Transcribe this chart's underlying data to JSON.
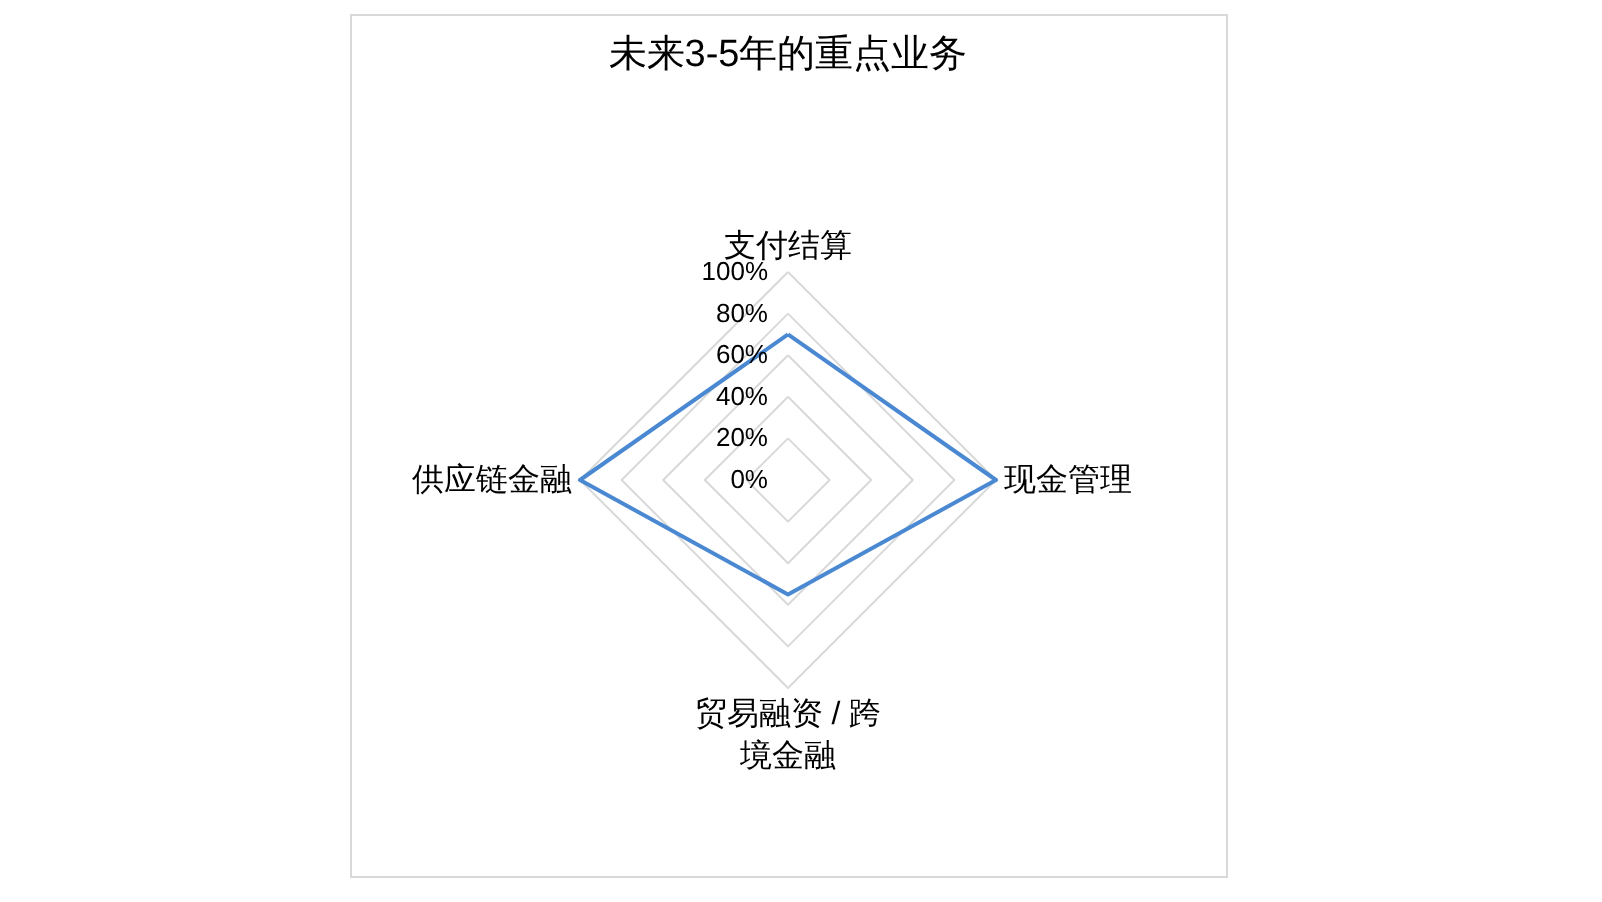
{
  "chart_data": {
    "type": "radar",
    "title": "未来3-5年的重点业务",
    "categories": [
      "支付结算",
      "现金管理",
      "贸易融资 / 跨境金融",
      "供应链金融"
    ],
    "series": [
      {
        "color": "#4a89d2",
        "values": [
          70,
          100,
          55,
          100
        ]
      }
    ],
    "ylim": [
      0,
      100
    ],
    "yticks": [
      {
        "value": 0,
        "label": "0%"
      },
      {
        "value": 20,
        "label": "20%"
      },
      {
        "value": 40,
        "label": "40%"
      },
      {
        "value": 60,
        "label": "60%"
      },
      {
        "value": 80,
        "label": "80%"
      },
      {
        "value": 100,
        "label": "100%"
      }
    ],
    "grid": true,
    "legend": false
  }
}
